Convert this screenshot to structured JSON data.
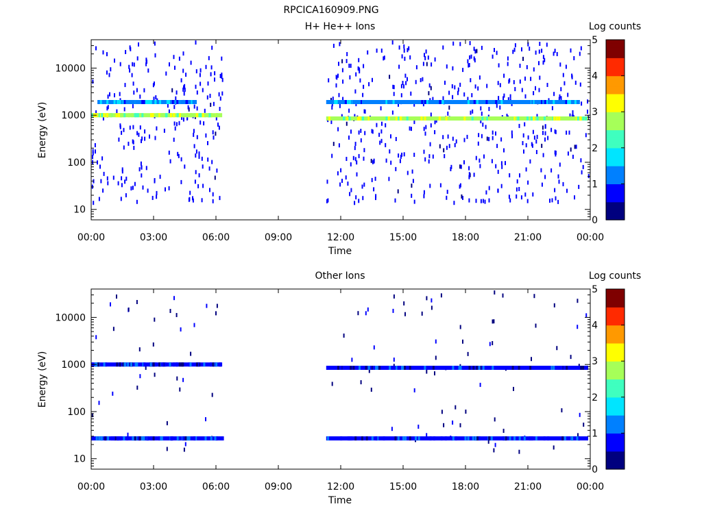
{
  "figure_title": "RPCICA160909.PNG",
  "colors": {
    "colormap": [
      "#00007f",
      "#0000ff",
      "#0080ff",
      "#00e5ff",
      "#3fffbf",
      "#a6ff59",
      "#ffff00",
      "#ff9900",
      "#ff2a00",
      "#7f0000"
    ],
    "axis": "#000000",
    "background": "#ffffff"
  },
  "chart_data": [
    {
      "type": "heatmap",
      "title": "H+ He++ Ions",
      "xlabel": "Time",
      "ylabel": "Energy (eV)",
      "x_ticks": [
        "00:00",
        "03:00",
        "06:00",
        "09:00",
        "12:00",
        "15:00",
        "18:00",
        "21:00",
        "00:00"
      ],
      "xlim_hours": [
        0,
        24
      ],
      "y_scale": "log",
      "ylim": [
        6,
        40000
      ],
      "y_ticks": [
        10,
        100,
        1000,
        10000
      ],
      "y_tick_labels": [
        "10",
        "100",
        "1000",
        "10000"
      ],
      "colorbar": {
        "label": "Log counts",
        "range": [
          0,
          5
        ],
        "ticks": [
          "0",
          "1",
          "2",
          "3",
          "4",
          "5"
        ]
      },
      "data_intervals_hours": [
        [
          0.0,
          6.3
        ],
        [
          11.3,
          23.9
        ]
      ],
      "bands": [
        {
          "energy_ev": 1000,
          "log_counts": 2.8,
          "intervals_hours": [
            [
              0.0,
              6.3
            ]
          ]
        },
        {
          "energy_ev": 850,
          "log_counts": 2.8,
          "intervals_hours": [
            [
              11.3,
              23.9
            ]
          ]
        },
        {
          "energy_ev": 1900,
          "log_counts": 1.3,
          "intervals_hours": [
            [
              0.3,
              5.0
            ],
            [
              11.3,
              23.5
            ]
          ]
        }
      ],
      "background_noise": {
        "log_counts": 0.8,
        "energy_range_ev": [
          15,
          40000
        ]
      }
    },
    {
      "type": "heatmap",
      "title": "Other Ions",
      "xlabel": "Time",
      "ylabel": "Energy (eV)",
      "x_ticks": [
        "00:00",
        "03:00",
        "06:00",
        "09:00",
        "12:00",
        "15:00",
        "18:00",
        "21:00",
        "00:00"
      ],
      "xlim_hours": [
        0,
        24
      ],
      "y_scale": "log",
      "ylim": [
        6,
        40000
      ],
      "y_ticks": [
        10,
        100,
        1000,
        10000
      ],
      "y_tick_labels": [
        "10",
        "100",
        "1000",
        "10000"
      ],
      "colorbar": {
        "label": "Log counts",
        "range": [
          0,
          5
        ],
        "ticks": [
          "0",
          "1",
          "2",
          "3",
          "4",
          "5"
        ]
      },
      "data_intervals_hours": [
        [
          0.0,
          6.3
        ],
        [
          11.3,
          23.9
        ]
      ],
      "bands": [
        {
          "energy_ev": 1000,
          "log_counts": 0.7,
          "intervals_hours": [
            [
              0.0,
              6.3
            ]
          ]
        },
        {
          "energy_ev": 850,
          "log_counts": 0.7,
          "intervals_hours": [
            [
              11.3,
              23.9
            ]
          ]
        },
        {
          "energy_ev": 27,
          "log_counts": 0.9,
          "intervals_hours": [
            [
              0.0,
              6.3
            ],
            [
              11.3,
              23.9
            ]
          ]
        }
      ],
      "background_noise": {
        "log_counts": 0.5,
        "energy_range_ev": [
          15,
          40000
        ]
      }
    }
  ]
}
